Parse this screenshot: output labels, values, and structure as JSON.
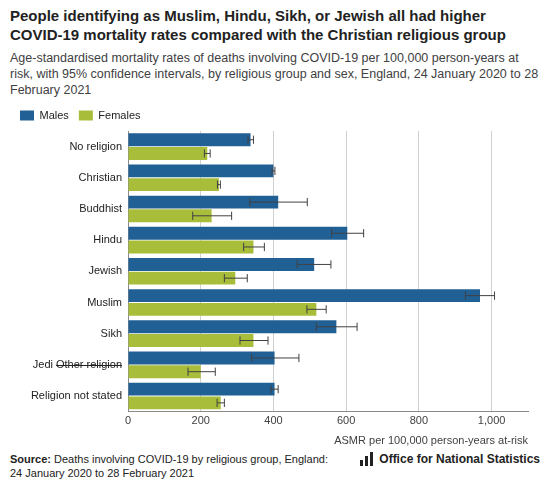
{
  "chart_data": {
    "type": "bar",
    "orientation": "horizontal",
    "title": "People identifying as Muslim, Hindu, Sikh, or Jewish all had higher COVID-19 mortality rates compared with the Christian religious group",
    "subtitle": "Age-standardised mortality rates of deaths involving COVID-19 per 100,000 person-years at risk, with 95% confidence intervals, by religious group and sex, England, 24 January 2020 to 28 February 2021",
    "categories": [
      "No religion",
      "Christian",
      "Buddhist",
      "Hindu",
      "Jewish",
      "Muslim",
      "Sikh",
      "Other religion",
      "Religion not stated"
    ],
    "series": [
      {
        "name": "Males",
        "color": "#206095",
        "values": [
          337,
          400,
          413,
          603,
          512,
          968,
          573,
          403,
          403
        ],
        "ci_lower": [
          330,
          396,
          335,
          560,
          465,
          928,
          518,
          340,
          393
        ],
        "ci_upper": [
          345,
          404,
          493,
          648,
          558,
          1008,
          630,
          470,
          413
        ]
      },
      {
        "name": "Females",
        "color": "#a8bd3a",
        "values": [
          218,
          250,
          230,
          345,
          295,
          518,
          345,
          200,
          255
        ],
        "ci_lower": [
          210,
          246,
          178,
          318,
          265,
          492,
          308,
          165,
          245
        ],
        "ci_upper": [
          226,
          254,
          285,
          375,
          328,
          545,
          385,
          240,
          265
        ]
      }
    ],
    "xlabel": "ASMR per 100,000 person-years at-risk",
    "xlim": [
      0,
      1100
    ],
    "xticks": [
      0,
      200,
      400,
      600,
      800,
      {
        "value": 1000,
        "label": "1,000"
      }
    ],
    "grid": true,
    "legend": "top left",
    "annotations": [
      {
        "text": "Jedi",
        "category": "Other religion"
      }
    ],
    "source": "Source: Deaths involving COVID-19 by religious group, England: 24 January 2020 to 28 February 2021",
    "publisher": "Office for National Statistics"
  }
}
